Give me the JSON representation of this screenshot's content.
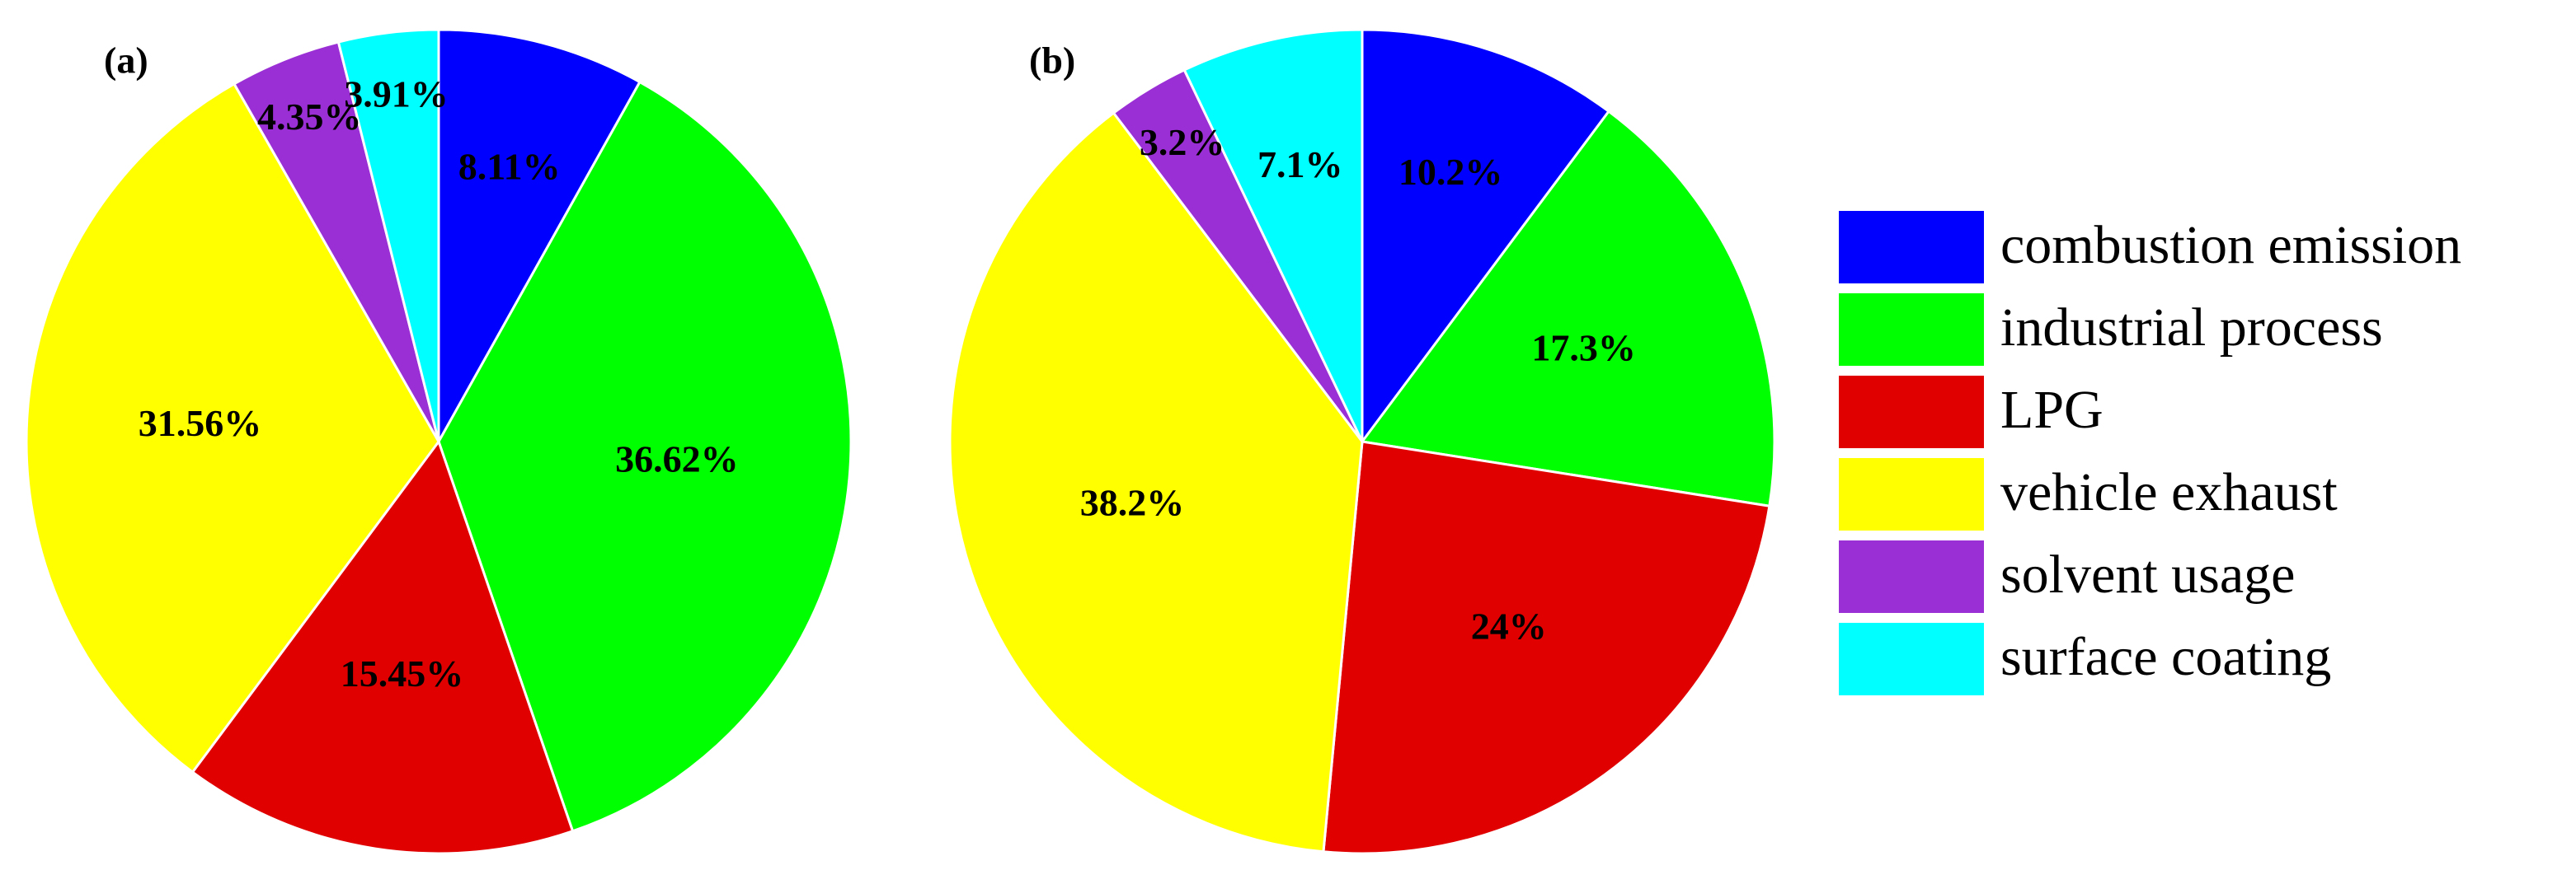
{
  "chart_data": [
    {
      "type": "pie",
      "title": "(a)",
      "categories": [
        "combustion emission",
        "industrial process",
        "LPG",
        "vehicle exhaust",
        "solvent usage",
        "surface coating"
      ],
      "values": [
        8.11,
        36.62,
        15.45,
        31.56,
        4.35,
        3.91
      ],
      "value_labels": [
        "8.11%",
        "36.62%",
        "15.45%",
        "31.56%",
        "4.35%",
        "3.91%"
      ],
      "colors": [
        "#0000ff",
        "#00ff00",
        "#e00000",
        "#ffff00",
        "#9b2fd6",
        "#00ffff"
      ]
    },
    {
      "type": "pie",
      "title": "(b)",
      "categories": [
        "combustion emission",
        "industrial process",
        "LPG",
        "vehicle exhaust",
        "solvent usage",
        "surface coating"
      ],
      "values": [
        10.2,
        17.3,
        24,
        38.2,
        3.2,
        7.1
      ],
      "value_labels": [
        "10.2%",
        "17.3%",
        "24%",
        "38.2%",
        "3.2%",
        "7.1%"
      ],
      "colors": [
        "#0000ff",
        "#00ff00",
        "#e00000",
        "#ffff00",
        "#9b2fd6",
        "#00ffff"
      ]
    }
  ]
}
